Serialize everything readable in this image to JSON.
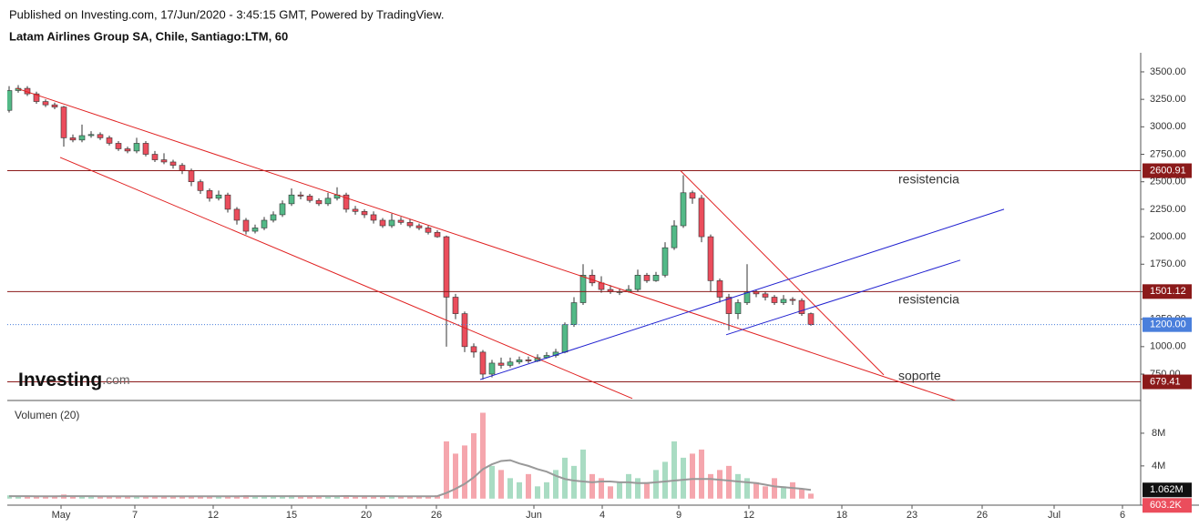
{
  "header": {
    "published": "Published on Investing.com, 17/Jun/2020 - 3:45:15 GMT, Powered by TradingView.",
    "title": "Latam Airlines Group SA, Chile, Santiago:LTM, 60"
  },
  "logo": {
    "brand": "Investing",
    "suffix": ".com"
  },
  "annotations": [
    "resistencia",
    "resistencia",
    "soporte"
  ],
  "chart_data": {
    "type": "candlestick",
    "xlim": [
      -0.2,
      124.2
    ],
    "xticks": [
      {
        "value": 5.7,
        "label": "May"
      },
      {
        "value": 13.8,
        "label": "7"
      },
      {
        "value": 22.4,
        "label": "12"
      },
      {
        "value": 31,
        "label": "15"
      },
      {
        "value": 39.2,
        "label": "20"
      },
      {
        "value": 46.9,
        "label": "26"
      },
      {
        "value": 57.6,
        "label": "Jun"
      },
      {
        "value": 65.1,
        "label": "4"
      },
      {
        "value": 73.5,
        "label": "9"
      },
      {
        "value": 81.2,
        "label": "12"
      },
      {
        "value": 91.4,
        "label": "18"
      },
      {
        "value": 99.1,
        "label": "23"
      },
      {
        "value": 106.8,
        "label": "26"
      },
      {
        "value": 114.7,
        "label": "Jul"
      },
      {
        "value": 122.2,
        "label": "6"
      }
    ],
    "ylim": [
      510,
      3657
    ],
    "yticks": [
      {
        "value": 3500,
        "label": "3500.00"
      },
      {
        "value": 3250,
        "label": "3250.00"
      },
      {
        "value": 3000,
        "label": "3000.00"
      },
      {
        "value": 2750,
        "label": "2750.00"
      },
      {
        "value": 2500,
        "label": "2500.00"
      },
      {
        "value": 2250,
        "label": "2250.00"
      },
      {
        "value": 2000,
        "label": "2000.00"
      },
      {
        "value": 1750,
        "label": "1750.00"
      },
      {
        "value": 1500,
        "label": "1500.00"
      },
      {
        "value": 1250,
        "label": "1250.00"
      },
      {
        "value": 1000,
        "label": "1000.00"
      },
      {
        "value": 750,
        "label": "750.00"
      }
    ],
    "up_color": "#53b987",
    "down_color": "#eb4d5c",
    "wick_color": "#333333",
    "open": [
      3150,
      3330,
      3350,
      3300,
      3230,
      3200,
      3180,
      2900,
      2880,
      2920,
      2930,
      2900,
      2850,
      2800,
      2780,
      2850,
      2750,
      2700,
      2680,
      2650,
      2600,
      2500,
      2420,
      2350,
      2380,
      2250,
      2150,
      2050,
      2080,
      2150,
      2200,
      2300,
      2380,
      2370,
      2330,
      2300,
      2350,
      2380,
      2250,
      2230,
      2200,
      2150,
      2100,
      2150,
      2130,
      2100,
      2080,
      2040,
      2000,
      1450,
      1300,
      1000,
      950,
      750,
      850,
      830,
      860,
      880,
      870,
      900,
      920,
      950,
      1200,
      1400,
      1650,
      1580,
      1520,
      1500,
      1500,
      1520,
      1650,
      1600,
      1650,
      1900,
      2100,
      2400,
      2350,
      2000,
      1600,
      1450,
      1300,
      1400,
      1500,
      1480,
      1450,
      1400,
      1430,
      1420,
      1300
    ],
    "high": [
      3370,
      3380,
      3370,
      3320,
      3250,
      3220,
      3190,
      2930,
      3020,
      2960,
      2950,
      2920,
      2870,
      2820,
      2900,
      2870,
      2780,
      2760,
      2700,
      2670,
      2620,
      2520,
      2440,
      2420,
      2400,
      2270,
      2170,
      2110,
      2180,
      2230,
      2330,
      2440,
      2410,
      2390,
      2350,
      2400,
      2450,
      2400,
      2280,
      2250,
      2230,
      2170,
      2210,
      2180,
      2160,
      2120,
      2100,
      2060,
      2010,
      1480,
      1320,
      1030,
      970,
      880,
      900,
      900,
      910,
      910,
      930,
      950,
      980,
      1220,
      1450,
      1750,
      1700,
      1640,
      1560,
      1530,
      1560,
      1700,
      1670,
      1680,
      1950,
      2150,
      2560,
      2420,
      2380,
      2020,
      1620,
      1480,
      1430,
      1750,
      1520,
      1500,
      1470,
      1470,
      1450,
      1440,
      1310
    ],
    "low": [
      3130,
      3310,
      3280,
      3210,
      3180,
      3160,
      2820,
      2860,
      2860,
      2900,
      2880,
      2830,
      2780,
      2760,
      2760,
      2730,
      2680,
      2660,
      2620,
      2570,
      2460,
      2390,
      2320,
      2330,
      2220,
      2110,
      2020,
      2030,
      2060,
      2130,
      2180,
      2280,
      2340,
      2310,
      2280,
      2280,
      2330,
      2220,
      2200,
      2170,
      2120,
      2080,
      2080,
      2110,
      2080,
      2060,
      2020,
      1990,
      1000,
      1250,
      950,
      900,
      700,
      720,
      800,
      810,
      840,
      850,
      860,
      890,
      900,
      940,
      1180,
      1380,
      1550,
      1490,
      1480,
      1470,
      1490,
      1500,
      1580,
      1590,
      1630,
      1880,
      2080,
      2300,
      1950,
      1500,
      1400,
      1150,
      1250,
      1380,
      1450,
      1420,
      1380,
      1380,
      1380,
      1280,
      1190
    ],
    "close": [
      3330,
      3350,
      3300,
      3230,
      3200,
      3180,
      2900,
      2880,
      2920,
      2930,
      2900,
      2850,
      2800,
      2780,
      2850,
      2750,
      2700,
      2680,
      2650,
      2600,
      2500,
      2420,
      2350,
      2380,
      2250,
      2150,
      2050,
      2080,
      2150,
      2200,
      2300,
      2380,
      2370,
      2330,
      2300,
      2350,
      2380,
      2250,
      2230,
      2200,
      2150,
      2100,
      2150,
      2130,
      2100,
      2080,
      2040,
      2000,
      1450,
      1300,
      1000,
      950,
      750,
      850,
      830,
      860,
      880,
      870,
      900,
      920,
      950,
      1200,
      1400,
      1650,
      1580,
      1520,
      1500,
      1500,
      1520,
      1650,
      1600,
      1650,
      1900,
      2100,
      2400,
      2350,
      2000,
      1600,
      1450,
      1300,
      1400,
      1500,
      1480,
      1450,
      1400,
      1430,
      1420,
      1300,
      1200
    ],
    "levels": [
      {
        "value": 2600.91,
        "color": "#8b1a1a"
      },
      {
        "value": 1501.12,
        "color": "#8b1a1a"
      },
      {
        "value": 679.41,
        "color": "#8b1a1a"
      }
    ],
    "last_price": {
      "value": 1200,
      "label": "1200.00",
      "color": "#4a7fdc"
    },
    "trendlines": [
      {
        "color": "#e02020",
        "points": [
          [
            0.8,
            3351
          ],
          [
            109.2,
            363
          ]
        ]
      },
      {
        "color": "#e02020",
        "points": [
          [
            5.6,
            2722
          ],
          [
            68.4,
            528
          ]
        ]
      },
      {
        "color": "#e02020",
        "points": [
          [
            73.7,
            2600
          ],
          [
            96,
            743
          ]
        ]
      },
      {
        "color": "#2020d0",
        "points": [
          [
            51.7,
            700
          ],
          [
            109.2,
            2250
          ]
        ]
      },
      {
        "color": "#2020d0",
        "points": [
          [
            78.7,
            1108
          ],
          [
            104.4,
            1787
          ]
        ]
      }
    ],
    "volume": {
      "title": "Volumen (20)",
      "ylim": [
        -800000,
        12000000
      ],
      "yticks": [
        {
          "value": 4000000,
          "label": "4M"
        },
        {
          "value": 8000000,
          "label": "8M"
        }
      ],
      "label_color": "#eb4d5c",
      "values": [
        400000,
        300000,
        250000,
        200000,
        300000,
        250000,
        500000,
        300000,
        350000,
        250000,
        200000,
        300000,
        250000,
        200000,
        350000,
        300000,
        250000,
        300000,
        200000,
        250000,
        300000,
        350000,
        250000,
        200000,
        300000,
        350000,
        400000,
        300000,
        250000,
        300000,
        350000,
        400000,
        300000,
        250000,
        200000,
        300000,
        350000,
        400000,
        250000,
        200000,
        300000,
        250000,
        300000,
        200000,
        250000,
        300000,
        350000,
        400000,
        7000000,
        5500000,
        6500000,
        8000000,
        10500000,
        4000000,
        3500000,
        2500000,
        2000000,
        3000000,
        1500000,
        2000000,
        3500000,
        5000000,
        4000000,
        6000000,
        3000000,
        2500000,
        1500000,
        2000000,
        3000000,
        2500000,
        2000000,
        3500000,
        4500000,
        7000000,
        5000000,
        5500000,
        6000000,
        3000000,
        3500000,
        4000000,
        3000000,
        2500000,
        2000000,
        1500000,
        2500000,
        1500000,
        2000000,
        1200000,
        603200
      ],
      "value_labels": [
        null,
        null,
        null,
        null,
        null,
        null,
        null,
        null,
        null,
        null,
        null,
        null,
        null,
        null,
        null,
        null,
        null,
        null,
        null,
        null,
        null,
        null,
        null,
        null,
        null,
        null,
        null,
        null,
        null,
        null,
        null,
        null,
        null,
        null,
        null,
        null,
        null,
        null,
        null,
        null,
        null,
        null,
        null,
        null,
        null,
        null,
        null,
        null,
        null,
        null,
        null,
        null,
        null,
        null,
        null,
        null,
        null,
        null,
        null,
        null,
        null,
        null,
        null,
        null,
        null,
        null,
        null,
        null,
        null,
        null,
        null,
        null,
        null,
        null,
        null,
        null,
        null,
        null,
        null,
        null,
        null,
        null,
        null,
        null,
        null,
        null,
        null,
        null,
        "603.2K"
      ]
    },
    "volume_ma": {
      "color": "#999999",
      "label_color": "#111111",
      "values": [
        300000,
        300000,
        300000,
        290000,
        290000,
        290000,
        300000,
        300000,
        300000,
        300000,
        290000,
        290000,
        290000,
        280000,
        280000,
        280000,
        280000,
        280000,
        280000,
        280000,
        280000,
        280000,
        280000,
        280000,
        290000,
        290000,
        300000,
        300000,
        300000,
        300000,
        300000,
        300000,
        300000,
        300000,
        300000,
        300000,
        300000,
        310000,
        300000,
        300000,
        300000,
        300000,
        300000,
        290000,
        290000,
        290000,
        290000,
        300000,
        700000,
        1200000,
        1800000,
        2600000,
        3600000,
        4200000,
        4600000,
        4700000,
        4300000,
        4000000,
        3600000,
        3300000,
        2800000,
        2400000,
        2200000,
        2100000,
        2000000,
        2100000,
        2100000,
        2000000,
        2000000,
        1900000,
        1900000,
        2000000,
        2100000,
        2200000,
        2300000,
        2400000,
        2400000,
        2400000,
        2300000,
        2200000,
        2100000,
        2000000,
        1900000,
        1700000,
        1500000,
        1400000,
        1300000,
        1200000,
        1062000
      ],
      "value_labels": [
        null,
        null,
        null,
        null,
        null,
        null,
        null,
        null,
        null,
        null,
        null,
        null,
        null,
        null,
        null,
        null,
        null,
        null,
        null,
        null,
        null,
        null,
        null,
        null,
        null,
        null,
        null,
        null,
        null,
        null,
        null,
        null,
        null,
        null,
        null,
        null,
        null,
        null,
        null,
        null,
        null,
        null,
        null,
        null,
        null,
        null,
        null,
        null,
        null,
        null,
        null,
        null,
        null,
        null,
        null,
        null,
        null,
        null,
        null,
        null,
        null,
        null,
        null,
        null,
        null,
        null,
        null,
        null,
        null,
        null,
        null,
        null,
        null,
        null,
        null,
        null,
        null,
        null,
        null,
        null,
        null,
        null,
        null,
        null,
        null,
        null,
        null,
        null,
        "1.062M"
      ]
    }
  }
}
